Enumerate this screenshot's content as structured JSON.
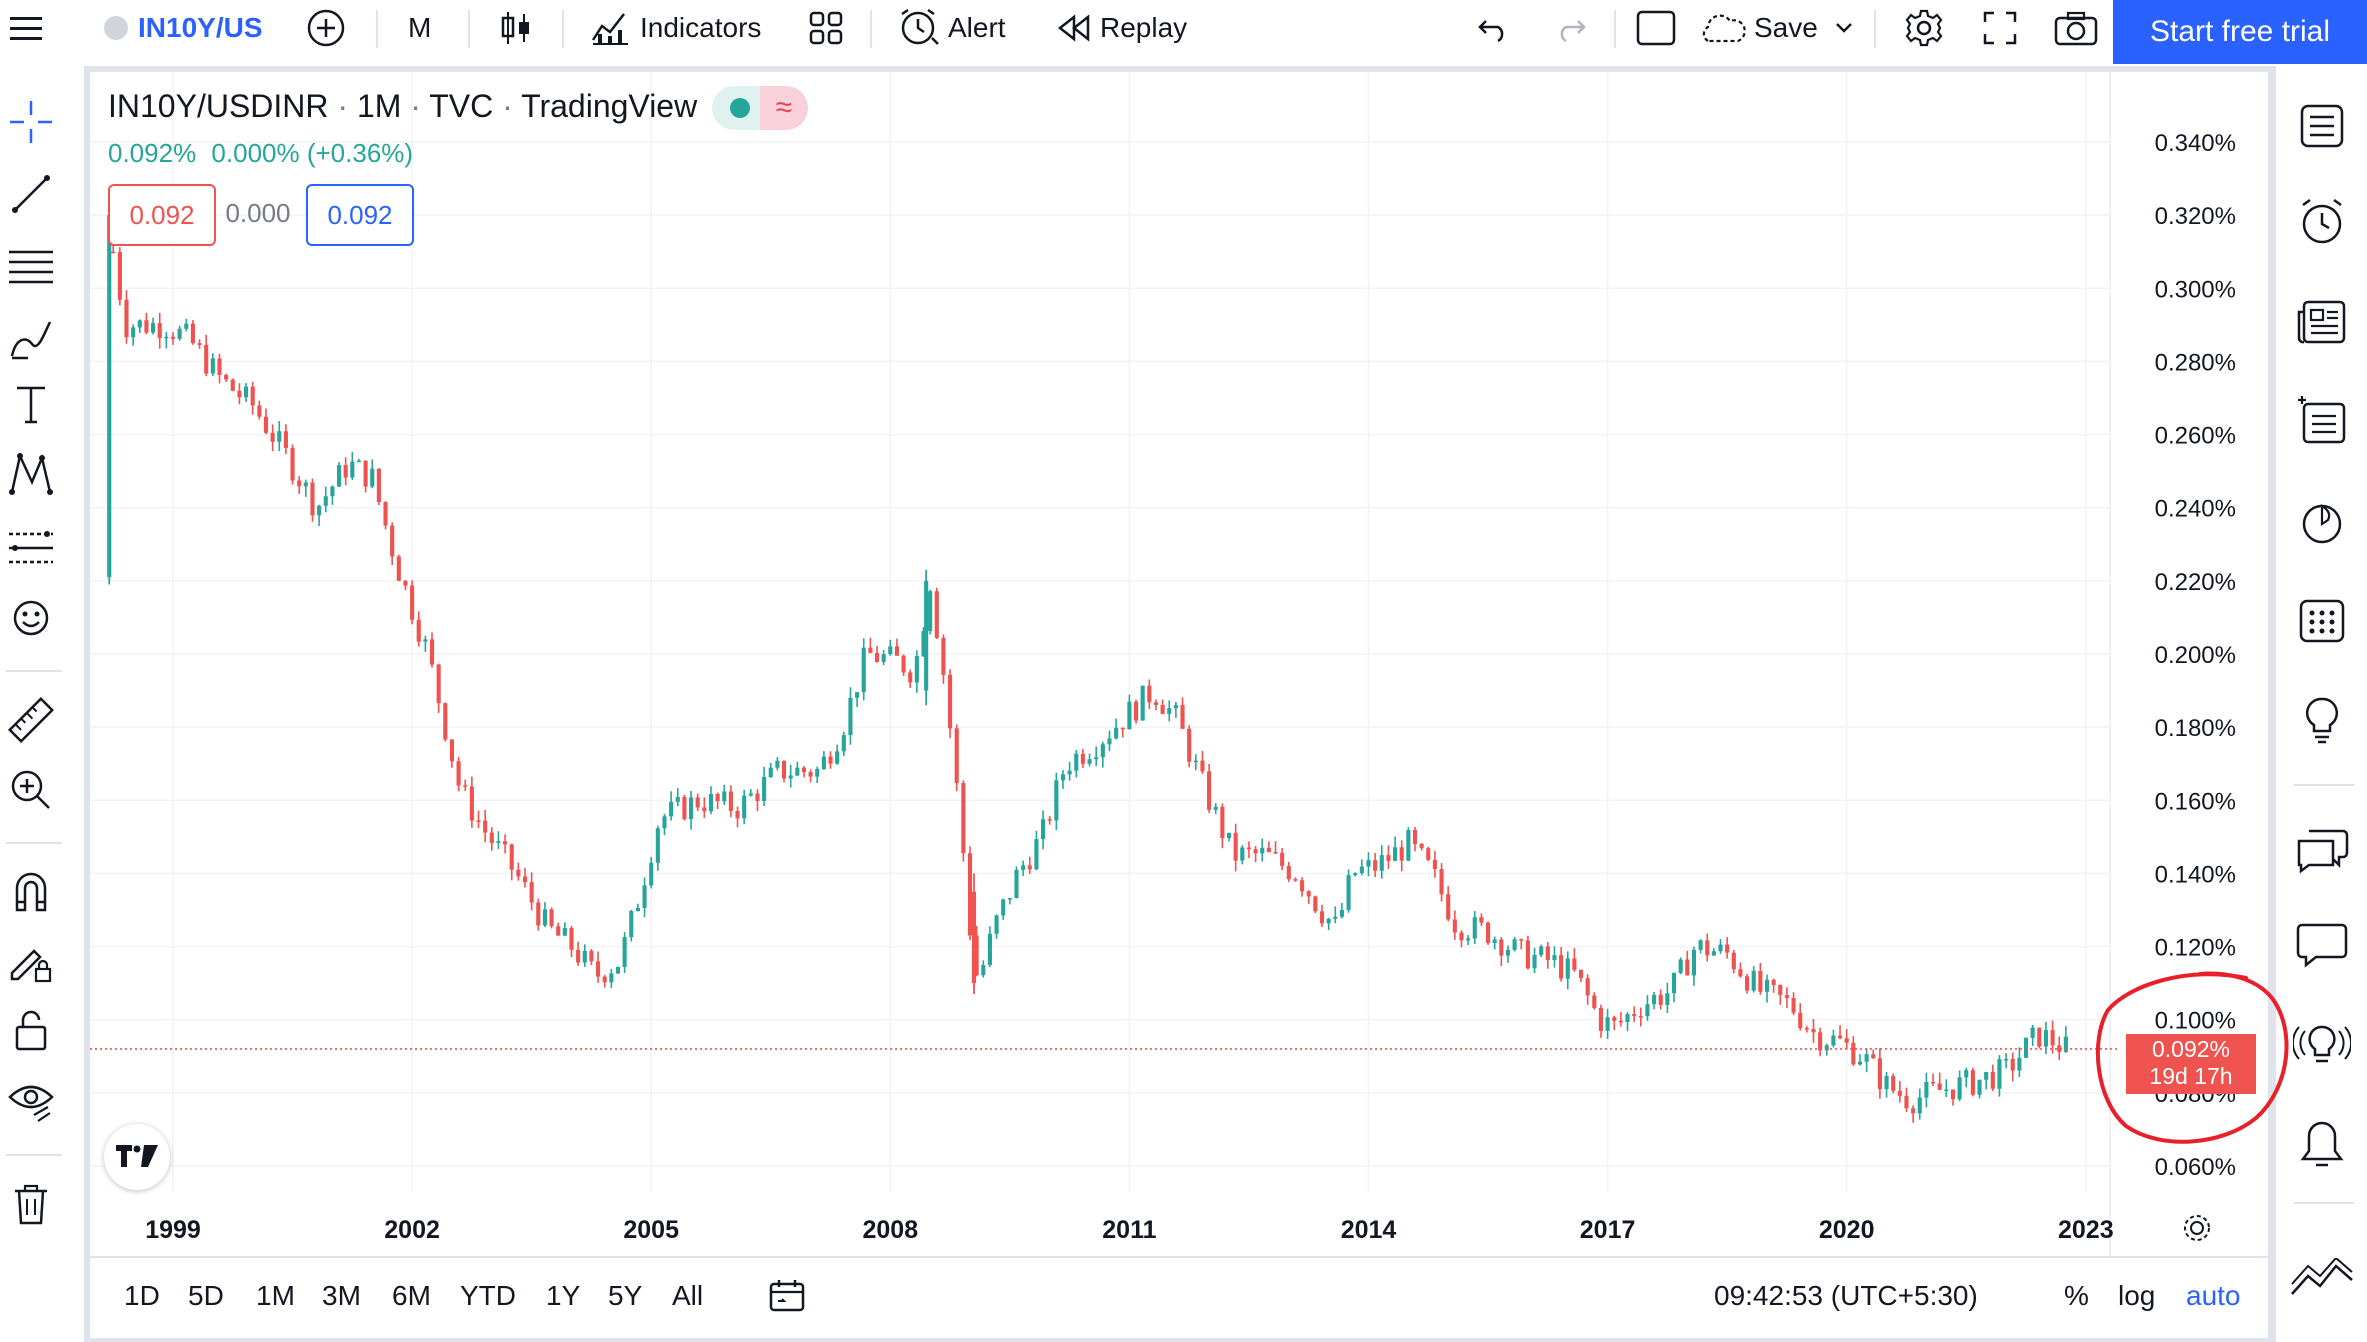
{
  "toolbar": {
    "symbol": "IN10Y/US",
    "interval": "M",
    "indicators_label": "Indicators",
    "alert_label": "Alert",
    "replay_label": "Replay",
    "save_label": "Save",
    "trial_label": "Start free trial"
  },
  "legend": {
    "symbol": "IN10Y/USDINR",
    "interval": "1M",
    "source": "TVC",
    "exchange": "TradingView",
    "sep": "·",
    "last": "0.092%",
    "change": "0.000% (+0.36%)",
    "sell": "0.092",
    "spread": "0.000",
    "buy": "0.092"
  },
  "price_label": {
    "value": "0.092%",
    "countdown": "19d 17h"
  },
  "bottom": {
    "ranges": [
      "1D",
      "5D",
      "1M",
      "3M",
      "6M",
      "YTD",
      "1Y",
      "5Y",
      "All"
    ],
    "time": "09:42:53 (UTC+5:30)",
    "percent": "%",
    "log": "log",
    "auto": "auto"
  },
  "colors": {
    "up": "#26a69a",
    "down": "#ef5350",
    "accent": "#2962ff",
    "annotation": "#e8202a"
  },
  "chart_data": {
    "type": "candlestick",
    "title": "IN10Y/USDINR",
    "interval": "1M",
    "y_unit": "%",
    "ylim": [
      0.053,
      0.352
    ],
    "xlim": [
      1998.0,
      2024.18
    ],
    "yticks": [
      0.34,
      0.32,
      0.3,
      0.28,
      0.26,
      0.24,
      0.22,
      0.2,
      0.18,
      0.16,
      0.14,
      0.12,
      0.1,
      0.08,
      0.06
    ],
    "ytick_labels": [
      "0.340%",
      "0.320%",
      "0.300%",
      "0.280%",
      "0.260%",
      "0.240%",
      "0.220%",
      "0.200%",
      "0.180%",
      "0.160%",
      "0.140%",
      "0.120%",
      "0.100%",
      "0.080%",
      "0.060%"
    ],
    "xticks": [
      1999,
      2002,
      2005,
      2008,
      2011,
      2014,
      2017,
      2020,
      2023
    ],
    "xtick_labels": [
      "1999",
      "2002",
      "2005",
      "2008",
      "2011",
      "2014",
      "2017",
      "2020",
      "2023"
    ],
    "last_price": 0.092,
    "grid": true,
    "path_points": [
      [
        1998.25,
        0.31
      ],
      [
        1998.4,
        0.29
      ],
      [
        1998.9,
        0.29
      ],
      [
        1999.2,
        0.286
      ],
      [
        1999.6,
        0.275
      ],
      [
        2000.0,
        0.268
      ],
      [
        2000.4,
        0.255
      ],
      [
        2000.8,
        0.24
      ],
      [
        2001.2,
        0.252
      ],
      [
        2001.5,
        0.248
      ],
      [
        2001.8,
        0.225
      ],
      [
        2002.2,
        0.2
      ],
      [
        2002.6,
        0.163
      ],
      [
        2002.9,
        0.152
      ],
      [
        2003.3,
        0.14
      ],
      [
        2003.7,
        0.125
      ],
      [
        2004.0,
        0.12
      ],
      [
        2004.3,
        0.112
      ],
      [
        2004.6,
        0.116
      ],
      [
        2004.8,
        0.13
      ],
      [
        2005.1,
        0.155
      ],
      [
        2005.6,
        0.16
      ],
      [
        2006.1,
        0.158
      ],
      [
        2006.6,
        0.168
      ],
      [
        2007.1,
        0.168
      ],
      [
        2007.4,
        0.18
      ],
      [
        2007.7,
        0.2
      ],
      [
        2008.1,
        0.198
      ],
      [
        2008.3,
        0.195
      ],
      [
        2008.5,
        0.22
      ],
      [
        2008.7,
        0.19
      ],
      [
        2008.9,
        0.15
      ],
      [
        2009.0,
        0.125
      ],
      [
        2009.1,
        0.11
      ],
      [
        2009.3,
        0.125
      ],
      [
        2009.6,
        0.14
      ],
      [
        2009.9,
        0.15
      ],
      [
        2010.2,
        0.17
      ],
      [
        2010.6,
        0.176
      ],
      [
        2010.9,
        0.182
      ],
      [
        2011.3,
        0.19
      ],
      [
        2011.6,
        0.182
      ],
      [
        2011.9,
        0.165
      ],
      [
        2012.3,
        0.145
      ],
      [
        2012.7,
        0.145
      ],
      [
        2013.1,
        0.14
      ],
      [
        2013.4,
        0.13
      ],
      [
        2013.6,
        0.125
      ],
      [
        2013.8,
        0.14
      ],
      [
        2014.1,
        0.142
      ],
      [
        2014.5,
        0.148
      ],
      [
        2014.8,
        0.14
      ],
      [
        2015.1,
        0.126
      ],
      [
        2015.5,
        0.124
      ],
      [
        2015.9,
        0.118
      ],
      [
        2016.3,
        0.116
      ],
      [
        2016.6,
        0.112
      ],
      [
        2016.9,
        0.1
      ],
      [
        2017.1,
        0.098
      ],
      [
        2017.4,
        0.104
      ],
      [
        2017.8,
        0.108
      ],
      [
        2018.1,
        0.12
      ],
      [
        2018.5,
        0.118
      ],
      [
        2018.9,
        0.108
      ],
      [
        2019.3,
        0.104
      ],
      [
        2019.6,
        0.096
      ],
      [
        2019.9,
        0.094
      ],
      [
        2020.2,
        0.09
      ],
      [
        2020.5,
        0.082
      ],
      [
        2020.8,
        0.078
      ],
      [
        2021.2,
        0.081
      ],
      [
        2021.6,
        0.083
      ],
      [
        2022.0,
        0.086
      ],
      [
        2022.4,
        0.096
      ],
      [
        2022.6,
        0.094
      ],
      [
        2022.75,
        0.092
      ]
    ],
    "spikes": [
      {
        "x": 1998.2,
        "low": 0.219,
        "high": 0.322,
        "open": 0.221,
        "close": 0.32
      },
      {
        "x": 2008.45,
        "low": 0.186,
        "high": 0.223,
        "open": 0.19,
        "close": 0.22
      },
      {
        "x": 2009.05,
        "low": 0.107,
        "high": 0.14,
        "open": 0.135,
        "close": 0.11
      }
    ]
  }
}
